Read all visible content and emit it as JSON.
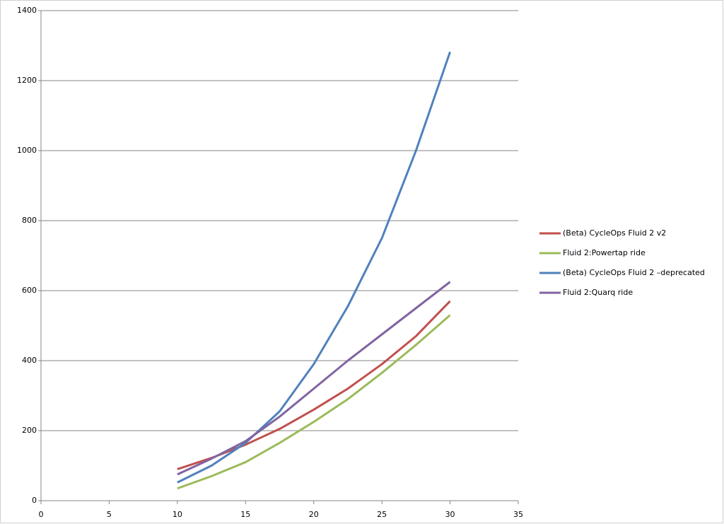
{
  "chart_data": {
    "type": "line",
    "x": [
      10,
      12.5,
      15,
      17.5,
      20,
      22.5,
      25,
      27.5,
      30
    ],
    "series": [
      {
        "name": "(Beta) CycleOps Fluid 2 v2",
        "color": "#c0504d",
        "values": [
          90,
          122,
          160,
          205,
          260,
          320,
          390,
          470,
          570
        ]
      },
      {
        "name": "Fluid 2:Powertap ride",
        "color": "#9bbb59",
        "values": [
          35,
          70,
          110,
          165,
          225,
          290,
          365,
          445,
          530
        ]
      },
      {
        "name": "(Beta) CycleOps Fluid 2 –deprecated",
        "color": "#4f81bd",
        "values": [
          52,
          100,
          165,
          255,
          390,
          555,
          750,
          1000,
          1282
        ]
      },
      {
        "name": "Fluid 2:Quarq ride",
        "color": "#8064a2",
        "values": [
          75,
          120,
          170,
          240,
          320,
          400,
          475,
          550,
          625
        ]
      }
    ],
    "xlim": [
      0,
      35
    ],
    "xticks": [
      0,
      5,
      10,
      15,
      20,
      25,
      30,
      35
    ],
    "ylim": [
      0,
      1400
    ],
    "yticks": [
      0,
      200,
      400,
      600,
      800,
      1000,
      1200,
      1400
    ],
    "grid": true,
    "legend": "right"
  }
}
